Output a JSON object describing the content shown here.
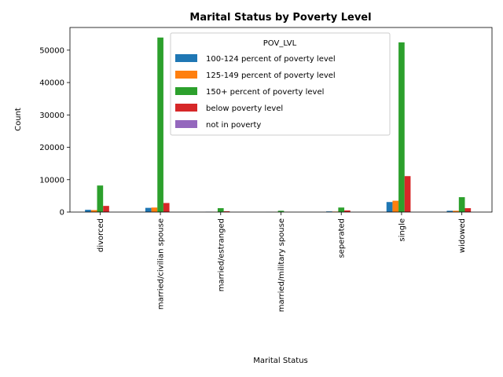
{
  "chart_data": {
    "type": "bar",
    "title": "Marital Status by Poverty Level",
    "xlabel": "Marital Status",
    "ylabel": "Count",
    "ylim": [
      0,
      57000
    ],
    "yticks": [
      0,
      10000,
      20000,
      30000,
      40000,
      50000
    ],
    "grid": false,
    "legend": {
      "title": "POV_LVL",
      "placement": "top-center"
    },
    "categories": [
      "divorced",
      "married/civilian spouse",
      "married/estranged",
      "married/military spouse",
      "seperated",
      "single",
      "widowed"
    ],
    "series": [
      {
        "name": "100-124 percent of poverty level",
        "color": "#1f77b4",
        "values": [
          700,
          1300,
          60,
          20,
          200,
          3100,
          400
        ]
      },
      {
        "name": "125-149 percent of poverty level",
        "color": "#ff7f0e",
        "values": [
          600,
          1400,
          50,
          20,
          150,
          3500,
          400
        ]
      },
      {
        "name": "150+ percent of poverty level",
        "color": "#2ca02c",
        "values": [
          8200,
          53900,
          1200,
          400,
          1400,
          52400,
          4600
        ]
      },
      {
        "name": "below poverty level",
        "color": "#d62728",
        "values": [
          1900,
          2800,
          250,
          40,
          500,
          11100,
          1200
        ]
      },
      {
        "name": "not in poverty",
        "color": "#9467bd",
        "values": [
          0,
          0,
          0,
          0,
          0,
          0,
          0
        ]
      }
    ]
  }
}
